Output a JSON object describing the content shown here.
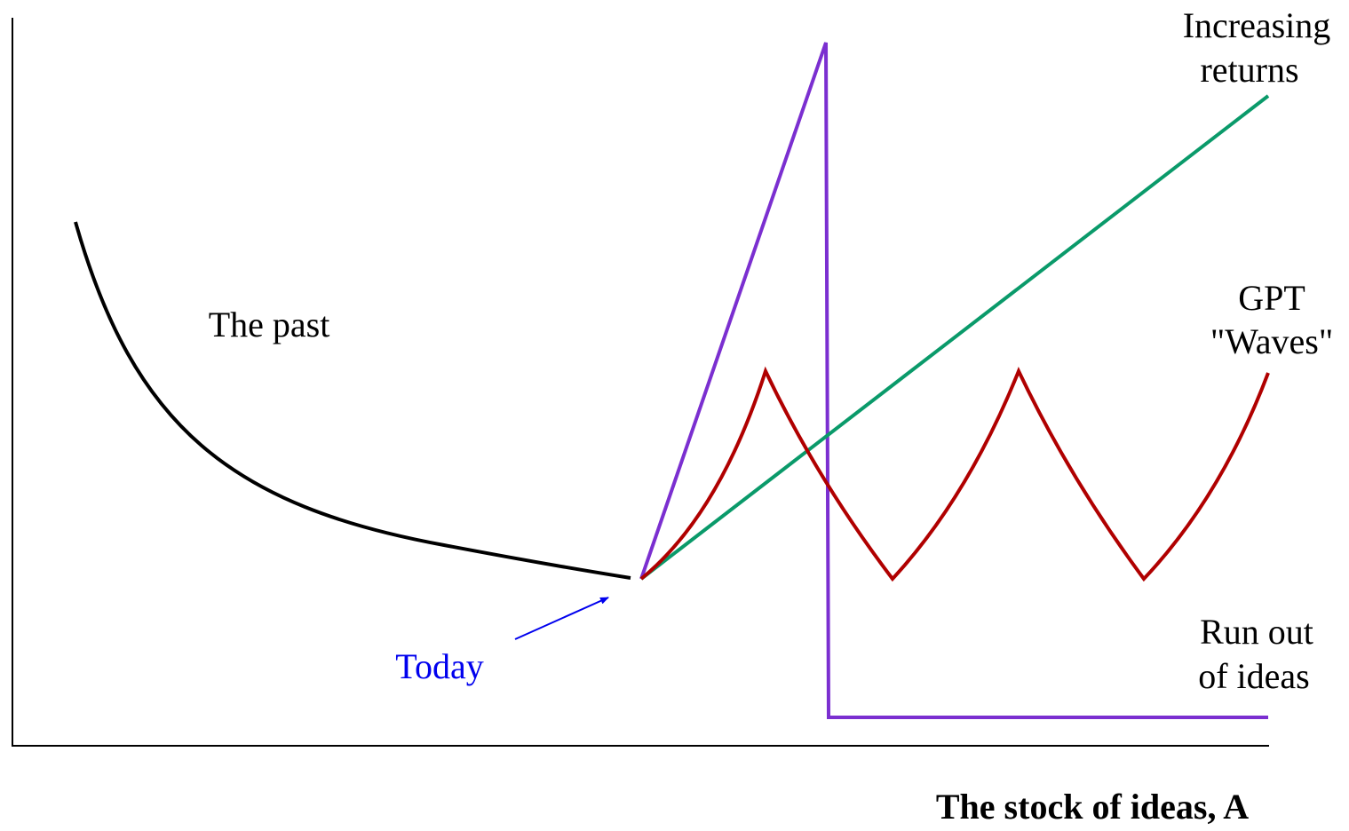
{
  "x_axis_label": "The stock of ideas, A",
  "labels": {
    "increasing_returns": [
      "Increasing",
      "returns"
    ],
    "gpt_waves": [
      "GPT",
      "\"Waves\""
    ],
    "the_past": "The past",
    "today": "Today",
    "run_out": [
      "Run out",
      "of ideas"
    ]
  }
}
